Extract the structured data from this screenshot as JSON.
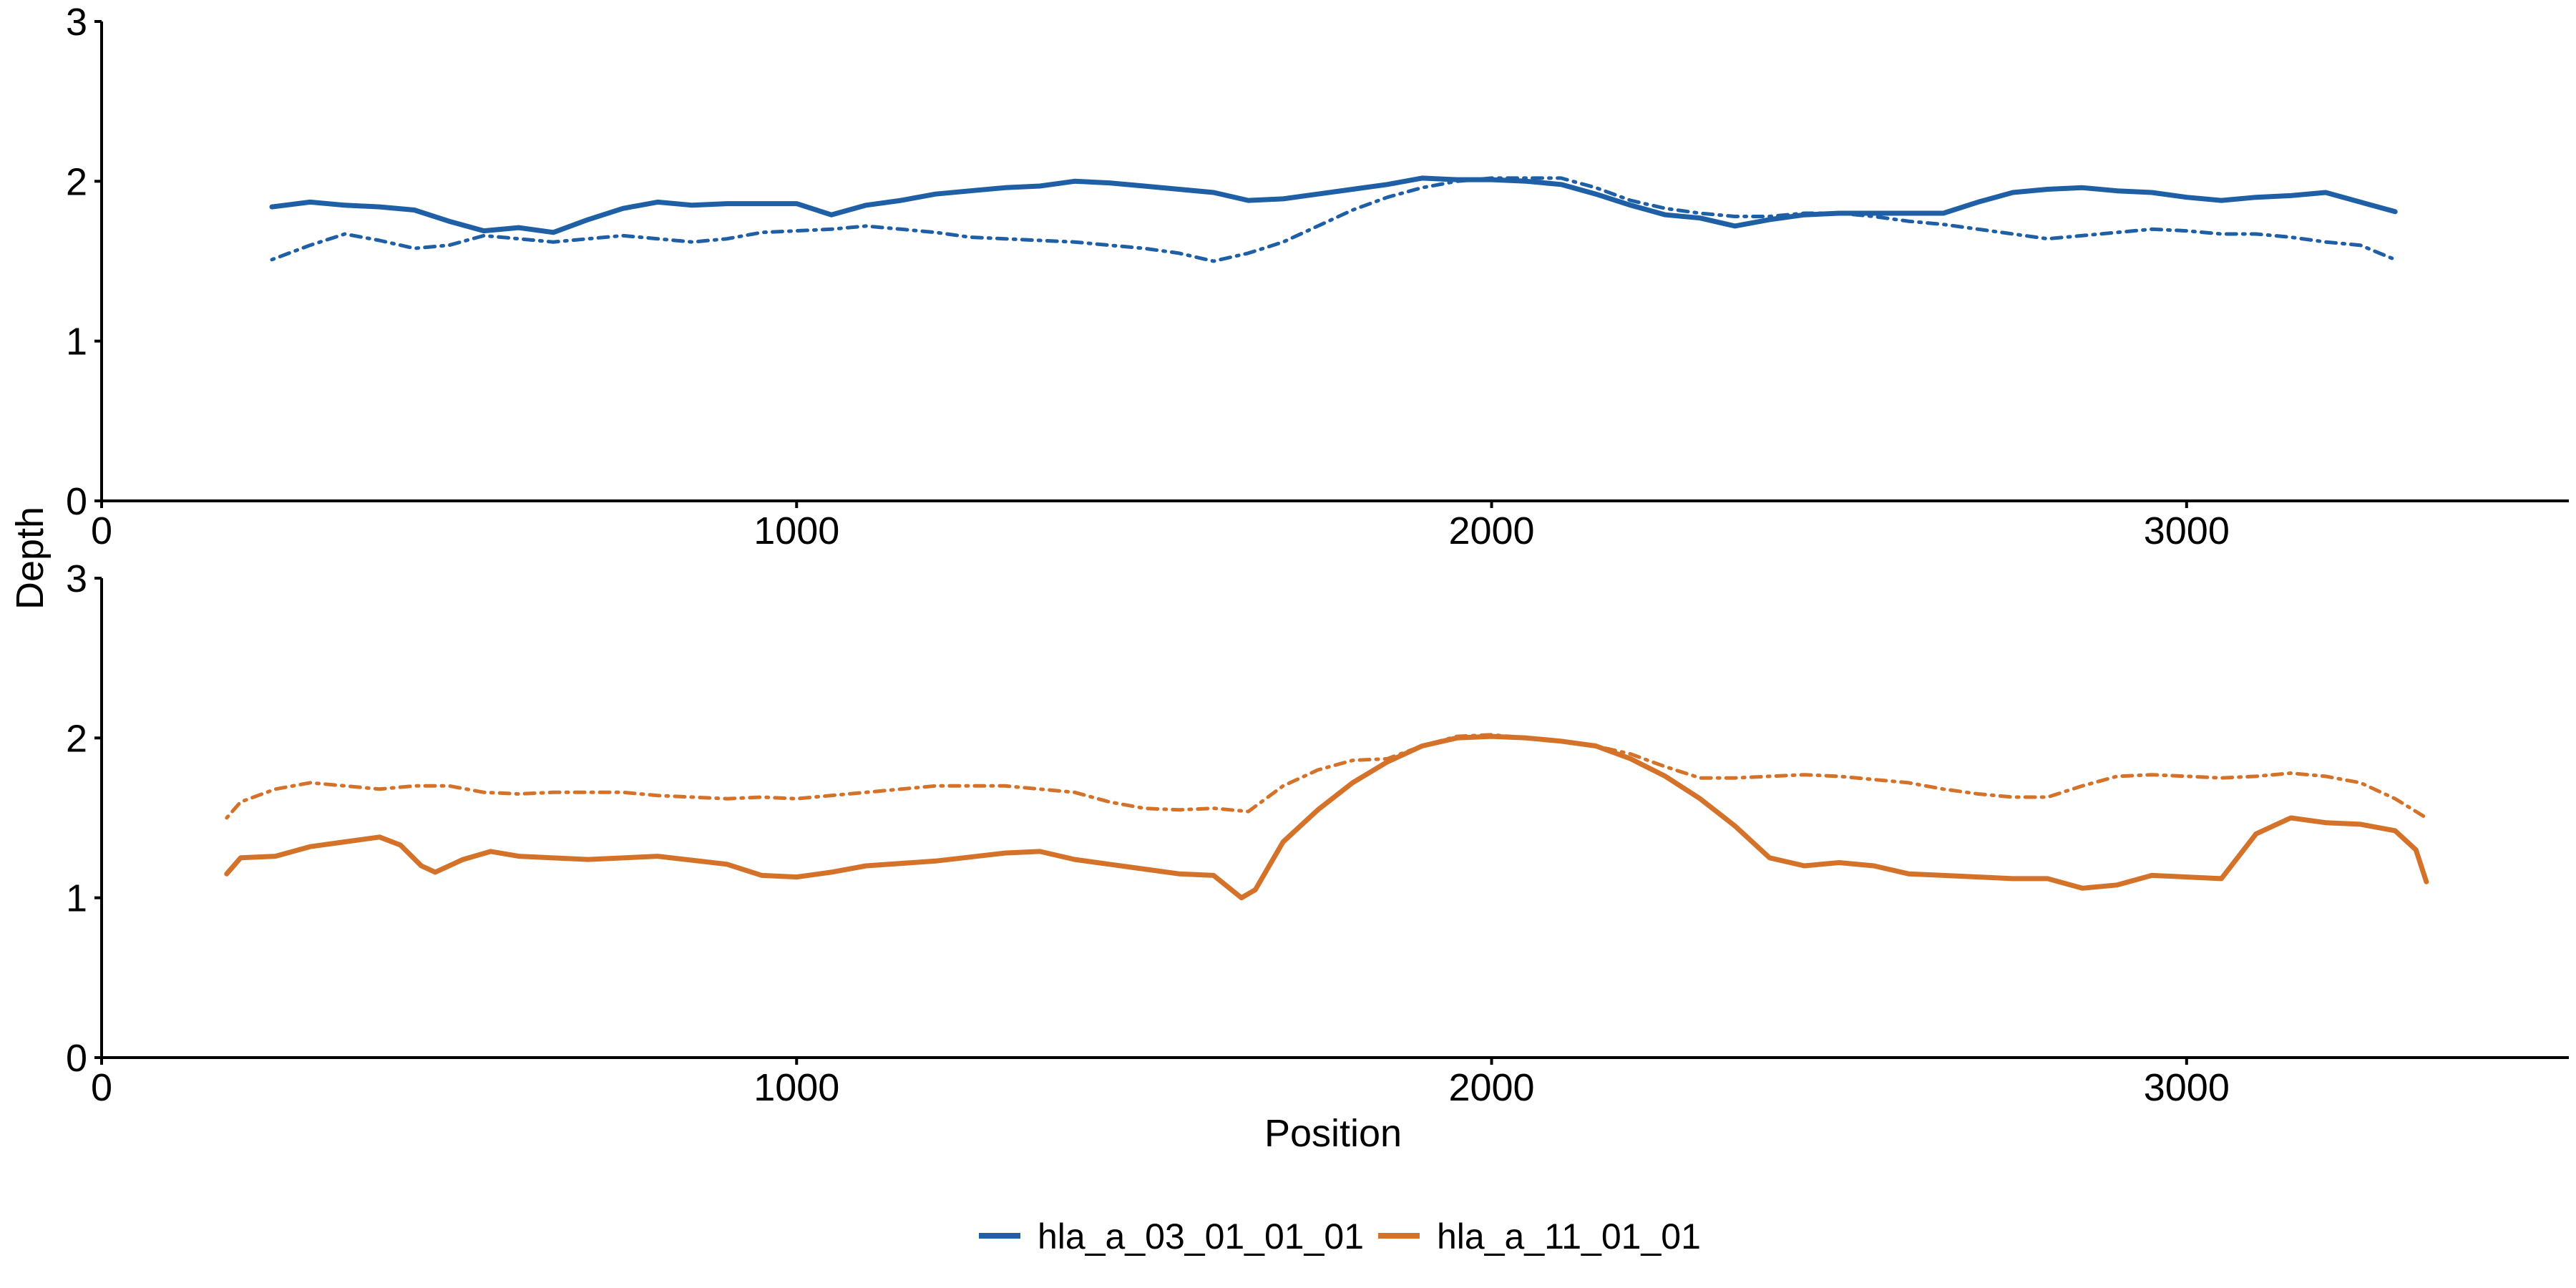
{
  "chart_data": {
    "type": "line",
    "ylabel": "Depth",
    "xlabel": "Position",
    "legend_position": "bottom",
    "legend": [
      {
        "label": "hla_a_03_01_01_01",
        "color": "#1F5FA6"
      },
      {
        "label": "hla_a_11_01_01",
        "color": "#D4722A"
      }
    ],
    "panels": [
      {
        "xlim": [
          0,
          3550
        ],
        "ylim": [
          0,
          3
        ],
        "x_ticks": [
          0,
          1000,
          2000,
          3000
        ],
        "x_tick_labels": [
          "0",
          "1000",
          "2000",
          "3000"
        ],
        "y_ticks": [
          0,
          1,
          2,
          3
        ],
        "y_tick_labels": [
          "0",
          "1",
          "2",
          "3"
        ],
        "series": [
          {
            "series_ref": "hla_a_03_01_01_01",
            "style": "solid",
            "color": "#1F5FA6",
            "x": [
              245,
              300,
              350,
              400,
              450,
              500,
              550,
              600,
              650,
              700,
              750,
              800,
              850,
              900,
              950,
              1000,
              1050,
              1100,
              1150,
              1200,
              1250,
              1300,
              1350,
              1400,
              1450,
              1500,
              1550,
              1600,
              1650,
              1700,
              1750,
              1800,
              1850,
              1900,
              1950,
              2000,
              2050,
              2100,
              2150,
              2200,
              2250,
              2300,
              2350,
              2400,
              2450,
              2500,
              2550,
              2600,
              2650,
              2700,
              2750,
              2800,
              2850,
              2900,
              2950,
              3000,
              3050,
              3100,
              3150,
              3200,
              3250,
              3300
            ],
            "y": [
              1.84,
              1.87,
              1.85,
              1.84,
              1.82,
              1.75,
              1.69,
              1.71,
              1.68,
              1.76,
              1.83,
              1.87,
              1.85,
              1.86,
              1.86,
              1.86,
              1.79,
              1.85,
              1.88,
              1.92,
              1.94,
              1.96,
              1.97,
              2.0,
              1.99,
              1.97,
              1.95,
              1.93,
              1.88,
              1.89,
              1.92,
              1.95,
              1.98,
              2.02,
              2.01,
              2.01,
              2.0,
              1.98,
              1.92,
              1.85,
              1.79,
              1.77,
              1.72,
              1.76,
              1.79,
              1.8,
              1.8,
              1.8,
              1.8,
              1.87,
              1.93,
              1.95,
              1.96,
              1.94,
              1.93,
              1.9,
              1.88,
              1.9,
              1.91,
              1.93,
              1.87,
              1.81
            ]
          },
          {
            "series_ref": "hla_a_03_01_01_01",
            "style": "dotdash",
            "color": "#1F5FA6",
            "x": [
              245,
              300,
              350,
              400,
              450,
              500,
              550,
              600,
              650,
              700,
              750,
              800,
              850,
              900,
              950,
              1000,
              1050,
              1100,
              1150,
              1200,
              1250,
              1300,
              1350,
              1400,
              1450,
              1500,
              1550,
              1600,
              1650,
              1700,
              1750,
              1800,
              1850,
              1900,
              1950,
              2000,
              2050,
              2100,
              2150,
              2200,
              2250,
              2300,
              2350,
              2400,
              2450,
              2500,
              2550,
              2600,
              2650,
              2700,
              2750,
              2800,
              2850,
              2900,
              2950,
              3000,
              3050,
              3100,
              3150,
              3200,
              3250,
              3300
            ],
            "y": [
              1.51,
              1.6,
              1.67,
              1.63,
              1.58,
              1.6,
              1.66,
              1.64,
              1.62,
              1.64,
              1.66,
              1.64,
              1.62,
              1.64,
              1.68,
              1.69,
              1.7,
              1.72,
              1.7,
              1.68,
              1.65,
              1.64,
              1.63,
              1.62,
              1.6,
              1.58,
              1.55,
              1.5,
              1.55,
              1.62,
              1.72,
              1.82,
              1.9,
              1.96,
              2.0,
              2.02,
              2.02,
              2.02,
              1.96,
              1.88,
              1.83,
              1.8,
              1.78,
              1.78,
              1.8,
              1.8,
              1.78,
              1.75,
              1.73,
              1.7,
              1.67,
              1.64,
              1.66,
              1.68,
              1.7,
              1.69,
              1.67,
              1.67,
              1.65,
              1.62,
              1.6,
              1.51
            ]
          }
        ]
      },
      {
        "xlim": [
          0,
          3550
        ],
        "ylim": [
          0,
          3
        ],
        "x_ticks": [
          0,
          1000,
          2000,
          3000
        ],
        "x_tick_labels": [
          "0",
          "1000",
          "2000",
          "3000"
        ],
        "y_ticks": [
          0,
          1,
          2,
          3
        ],
        "y_tick_labels": [
          "0",
          "1",
          "2",
          "3"
        ],
        "series": [
          {
            "series_ref": "hla_a_11_01_01",
            "style": "solid",
            "color": "#D4722A",
            "x": [
              180,
              200,
              250,
              300,
              350,
              400,
              430,
              460,
              480,
              520,
              560,
              600,
              700,
              800,
              900,
              950,
              1000,
              1050,
              1100,
              1200,
              1300,
              1350,
              1400,
              1450,
              1500,
              1550,
              1600,
              1640,
              1660,
              1680,
              1700,
              1750,
              1800,
              1850,
              1900,
              1950,
              2000,
              2050,
              2100,
              2150,
              2200,
              2250,
              2300,
              2350,
              2400,
              2450,
              2500,
              2550,
              2600,
              2650,
              2700,
              2750,
              2800,
              2850,
              2900,
              2950,
              3000,
              3050,
              3100,
              3150,
              3200,
              3250,
              3300,
              3330,
              3345
            ],
            "y": [
              1.15,
              1.25,
              1.26,
              1.32,
              1.35,
              1.38,
              1.33,
              1.2,
              1.16,
              1.24,
              1.29,
              1.26,
              1.24,
              1.26,
              1.21,
              1.14,
              1.13,
              1.16,
              1.2,
              1.23,
              1.28,
              1.29,
              1.24,
              1.21,
              1.18,
              1.15,
              1.14,
              1.0,
              1.05,
              1.2,
              1.35,
              1.55,
              1.72,
              1.85,
              1.95,
              2.0,
              2.01,
              2.0,
              1.98,
              1.95,
              1.87,
              1.76,
              1.62,
              1.45,
              1.25,
              1.2,
              1.22,
              1.2,
              1.15,
              1.14,
              1.13,
              1.12,
              1.12,
              1.06,
              1.08,
              1.14,
              1.13,
              1.12,
              1.4,
              1.5,
              1.47,
              1.46,
              1.42,
              1.3,
              1.1
            ]
          },
          {
            "series_ref": "hla_a_11_01_01",
            "style": "dotdash",
            "color": "#D4722A",
            "x": [
              180,
              200,
              250,
              300,
              350,
              400,
              450,
              500,
              550,
              600,
              650,
              700,
              750,
              800,
              850,
              900,
              950,
              1000,
              1050,
              1100,
              1150,
              1200,
              1250,
              1300,
              1350,
              1400,
              1450,
              1500,
              1550,
              1600,
              1650,
              1700,
              1750,
              1800,
              1850,
              1900,
              1950,
              2000,
              2050,
              2100,
              2150,
              2200,
              2250,
              2300,
              2350,
              2400,
              2450,
              2500,
              2550,
              2600,
              2650,
              2700,
              2750,
              2800,
              2850,
              2900,
              2950,
              3000,
              3050,
              3100,
              3150,
              3200,
              3250,
              3300,
              3345
            ],
            "y": [
              1.5,
              1.6,
              1.68,
              1.72,
              1.7,
              1.68,
              1.7,
              1.7,
              1.66,
              1.65,
              1.66,
              1.66,
              1.66,
              1.64,
              1.63,
              1.62,
              1.63,
              1.62,
              1.64,
              1.66,
              1.68,
              1.7,
              1.7,
              1.7,
              1.68,
              1.66,
              1.6,
              1.56,
              1.55,
              1.56,
              1.54,
              1.7,
              1.8,
              1.86,
              1.87,
              1.95,
              2.01,
              2.02,
              2.0,
              1.98,
              1.95,
              1.9,
              1.82,
              1.75,
              1.75,
              1.76,
              1.77,
              1.76,
              1.74,
              1.72,
              1.68,
              1.65,
              1.63,
              1.63,
              1.7,
              1.76,
              1.77,
              1.76,
              1.75,
              1.76,
              1.78,
              1.76,
              1.72,
              1.62,
              1.5
            ]
          }
        ]
      }
    ]
  }
}
